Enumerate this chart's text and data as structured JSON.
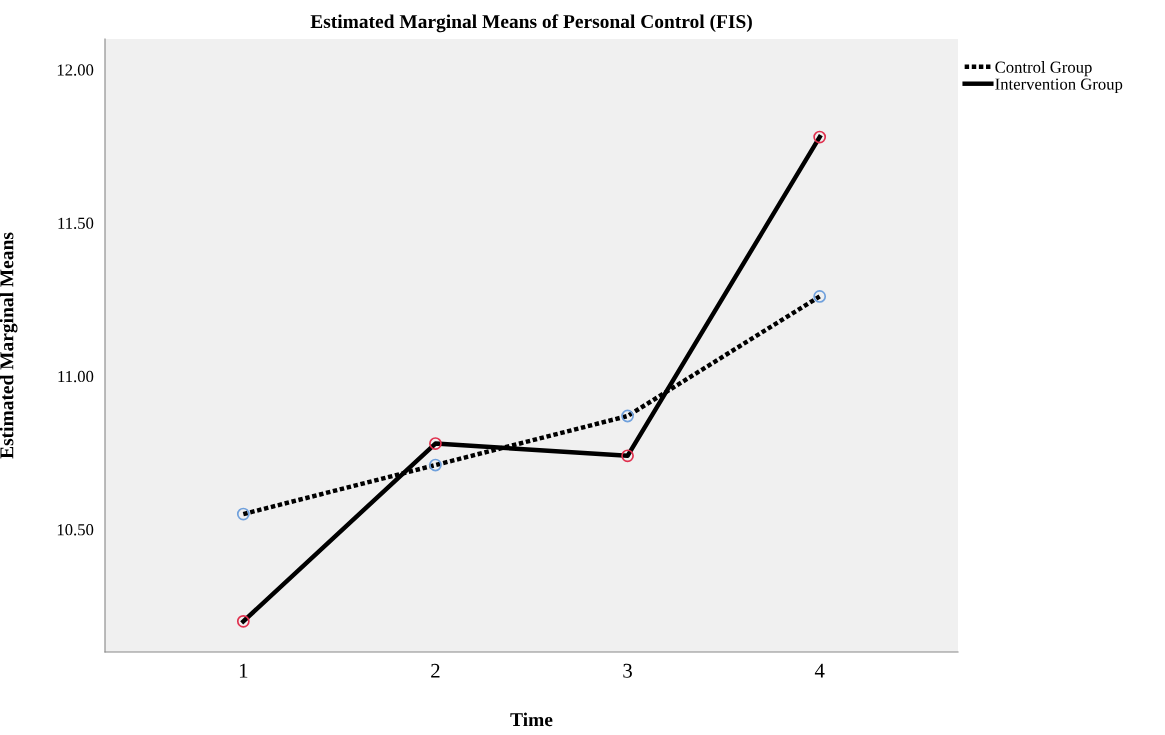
{
  "chart_data": {
    "type": "line",
    "title": "Estimated Marginal Means of Personal Control (FIS)",
    "xlabel": "Time",
    "ylabel": "Estimated Marginal Means",
    "categories": [
      "1",
      "2",
      "3",
      "4"
    ],
    "series": [
      {
        "name": "Control Group",
        "color": "#000000",
        "line_style": "dotted",
        "colors": [
          "#6fa0dc",
          "#6fa0dc",
          "#6fa0dc",
          "#6fa0dc"
        ],
        "values": [
          10.55,
          10.71,
          10.87,
          11.26
        ]
      },
      {
        "name": "Intervention Group",
        "color": "#000000",
        "line_style": "solid",
        "colors": [
          "#e0304e",
          "#e0304e",
          "#e0304e",
          "#e0304e"
        ],
        "values": [
          10.2,
          10.78,
          10.74,
          11.78
        ]
      }
    ],
    "marker": "circle",
    "ylim": [
      10.1,
      12.1
    ],
    "yticks": [
      {
        "value": 10.5,
        "label": "10.50"
      },
      {
        "value": 11.0,
        "label": "11.00"
      },
      {
        "value": 11.5,
        "label": "11.50"
      },
      {
        "value": 12.0,
        "label": "12.00"
      }
    ],
    "grid": false,
    "legend": "top right"
  }
}
